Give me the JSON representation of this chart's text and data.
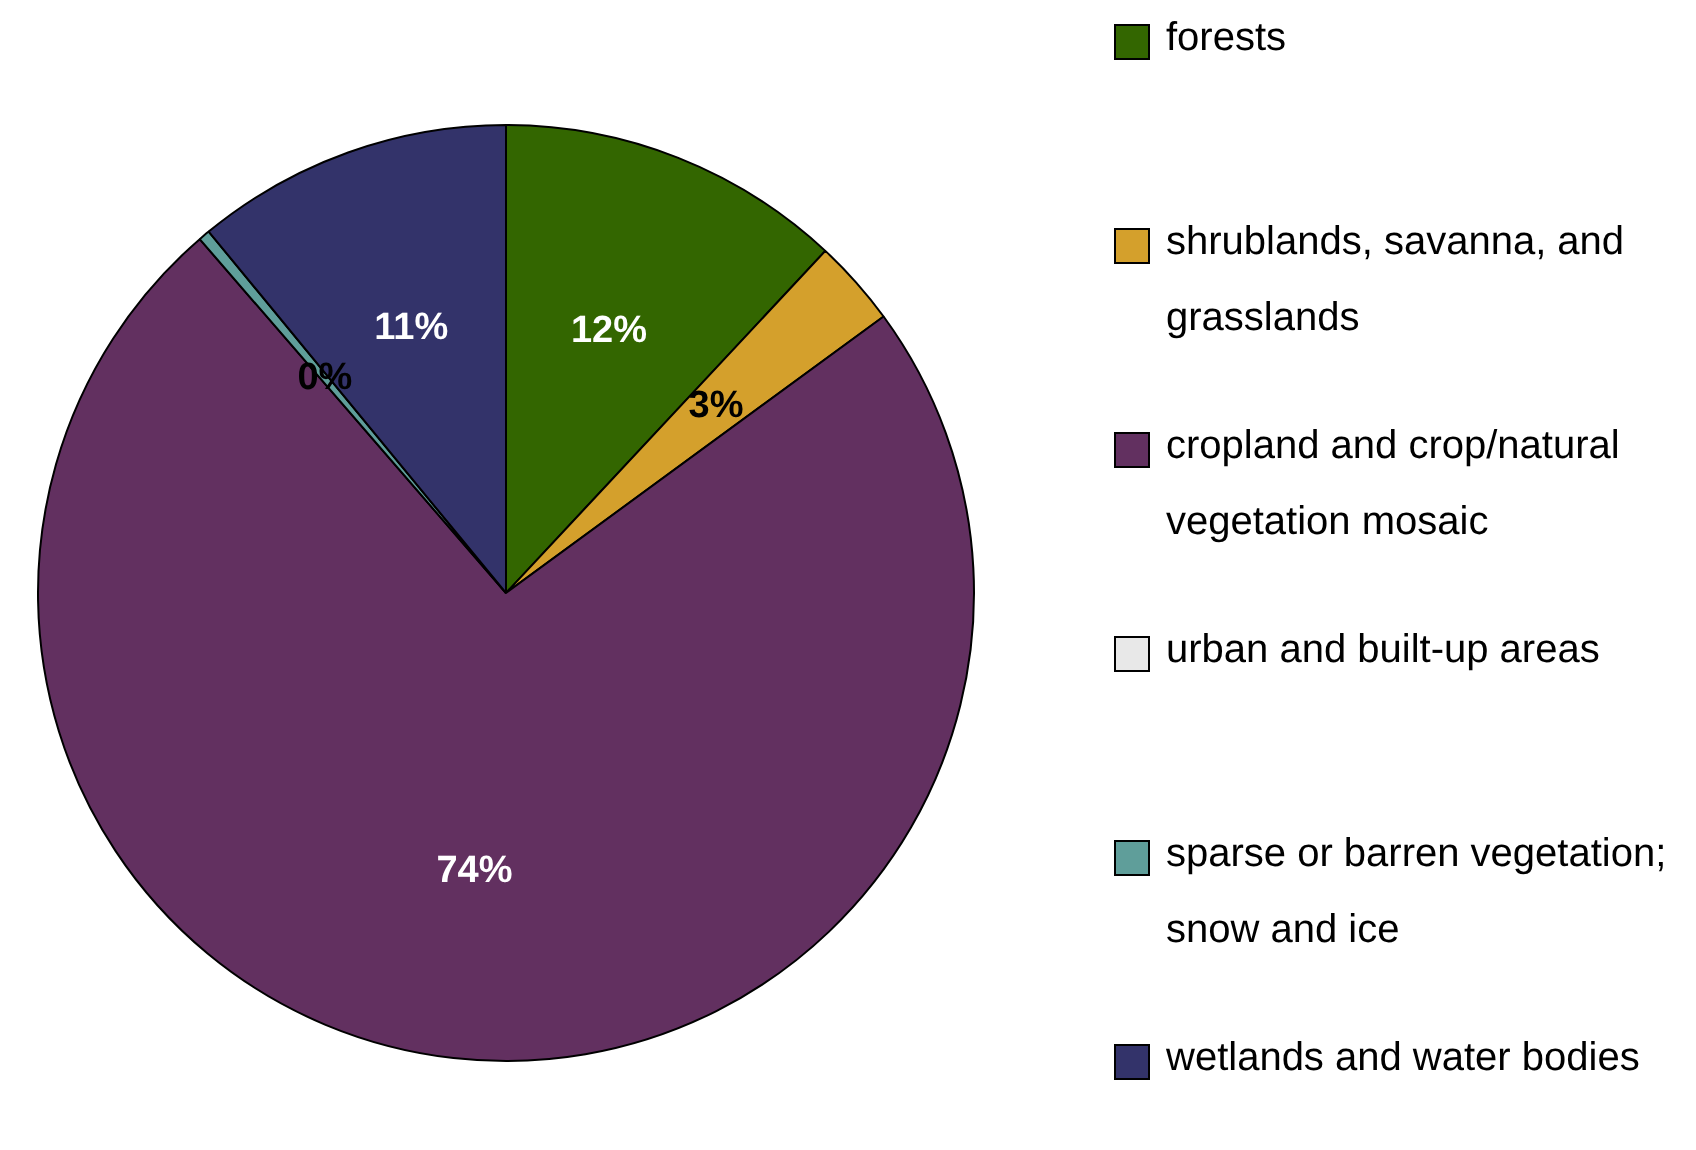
{
  "chart_data": {
    "type": "pie",
    "categories": [
      "forests",
      "shrublands, savanna, and grasslands",
      "cropland and crop/natural vegetation mosaic",
      "urban and built-up areas",
      "sparse or barren vegetation; snow and ice",
      "wetlands and water bodies"
    ],
    "values": [
      12,
      3,
      74,
      0,
      0.4,
      11
    ],
    "value_labels": [
      "12%",
      "3%",
      "74%",
      null,
      "0%",
      "11%"
    ],
    "colors": [
      "#336600",
      "#d4a02c",
      "#623060",
      "#e8e8e8",
      "#5f9e9a",
      "#33336a"
    ],
    "legend": "right"
  }
}
